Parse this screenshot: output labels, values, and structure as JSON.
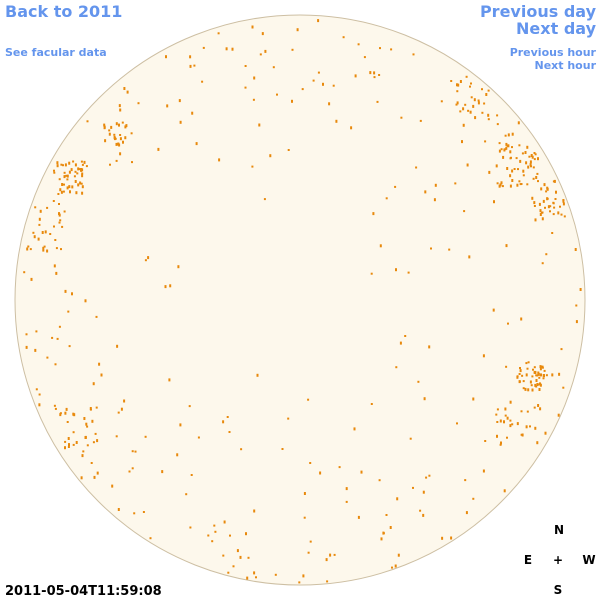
{
  "links": {
    "back": "Back to 2011",
    "facular": "See facular data",
    "previous_day": "Previous day",
    "next_day": "Next day",
    "previous_hour": "Previous hour",
    "next_hour": "Next hour"
  },
  "timestamp": "2011-05-04T11:59:08",
  "compass": {
    "n": "N",
    "e": "E",
    "center": "+",
    "w": "W",
    "s": "S"
  }
}
